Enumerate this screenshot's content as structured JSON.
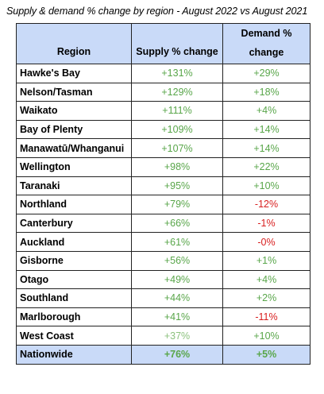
{
  "caption": "Supply & demand % change by region - August 2022 vs August 2021",
  "headers": {
    "region": "Region",
    "supply": "Supply % change",
    "demand_line1": "Demand %",
    "demand_line2": "change"
  },
  "rows": [
    {
      "region": "Hawke's Bay",
      "supply": "+131%",
      "demand": "+29%"
    },
    {
      "region": "Nelson/Tasman",
      "supply": "+129%",
      "demand": "+18%"
    },
    {
      "region": "Waikato",
      "supply": "+111%",
      "demand": "+4%"
    },
    {
      "region": "Bay of Plenty",
      "supply": "+109%",
      "demand": "+14%"
    },
    {
      "region": "Manawatū/Whanganui",
      "supply": "+107%",
      "demand": "+14%"
    },
    {
      "region": "Wellington",
      "supply": "+98%",
      "demand": "+22%"
    },
    {
      "region": "Taranaki",
      "supply": "+95%",
      "demand": "+10%"
    },
    {
      "region": "Northland",
      "supply": "+79%",
      "demand": "-12%"
    },
    {
      "region": "Canterbury",
      "supply": "+66%",
      "demand": "-1%"
    },
    {
      "region": "Auckland",
      "supply": "+61%",
      "demand": "-0%"
    },
    {
      "region": "Gisborne",
      "supply": "+56%",
      "demand": "+1%"
    },
    {
      "region": "Otago",
      "supply": "+49%",
      "demand": "+4%"
    },
    {
      "region": "Southland",
      "supply": "+44%",
      "demand": "+2%"
    },
    {
      "region": "Marlborough",
      "supply": "+41%",
      "demand": "-11%"
    },
    {
      "region": "West Coast",
      "supply": "+37%",
      "demand": "+10%"
    }
  ],
  "total": {
    "region": "Nationwide",
    "supply": "+76%",
    "demand": "+5%"
  },
  "colors": {
    "header_bg": "#c9daf8",
    "positive": "#59a64a",
    "positive_light": "#8dc27f",
    "negative": "#d81f1f"
  }
}
